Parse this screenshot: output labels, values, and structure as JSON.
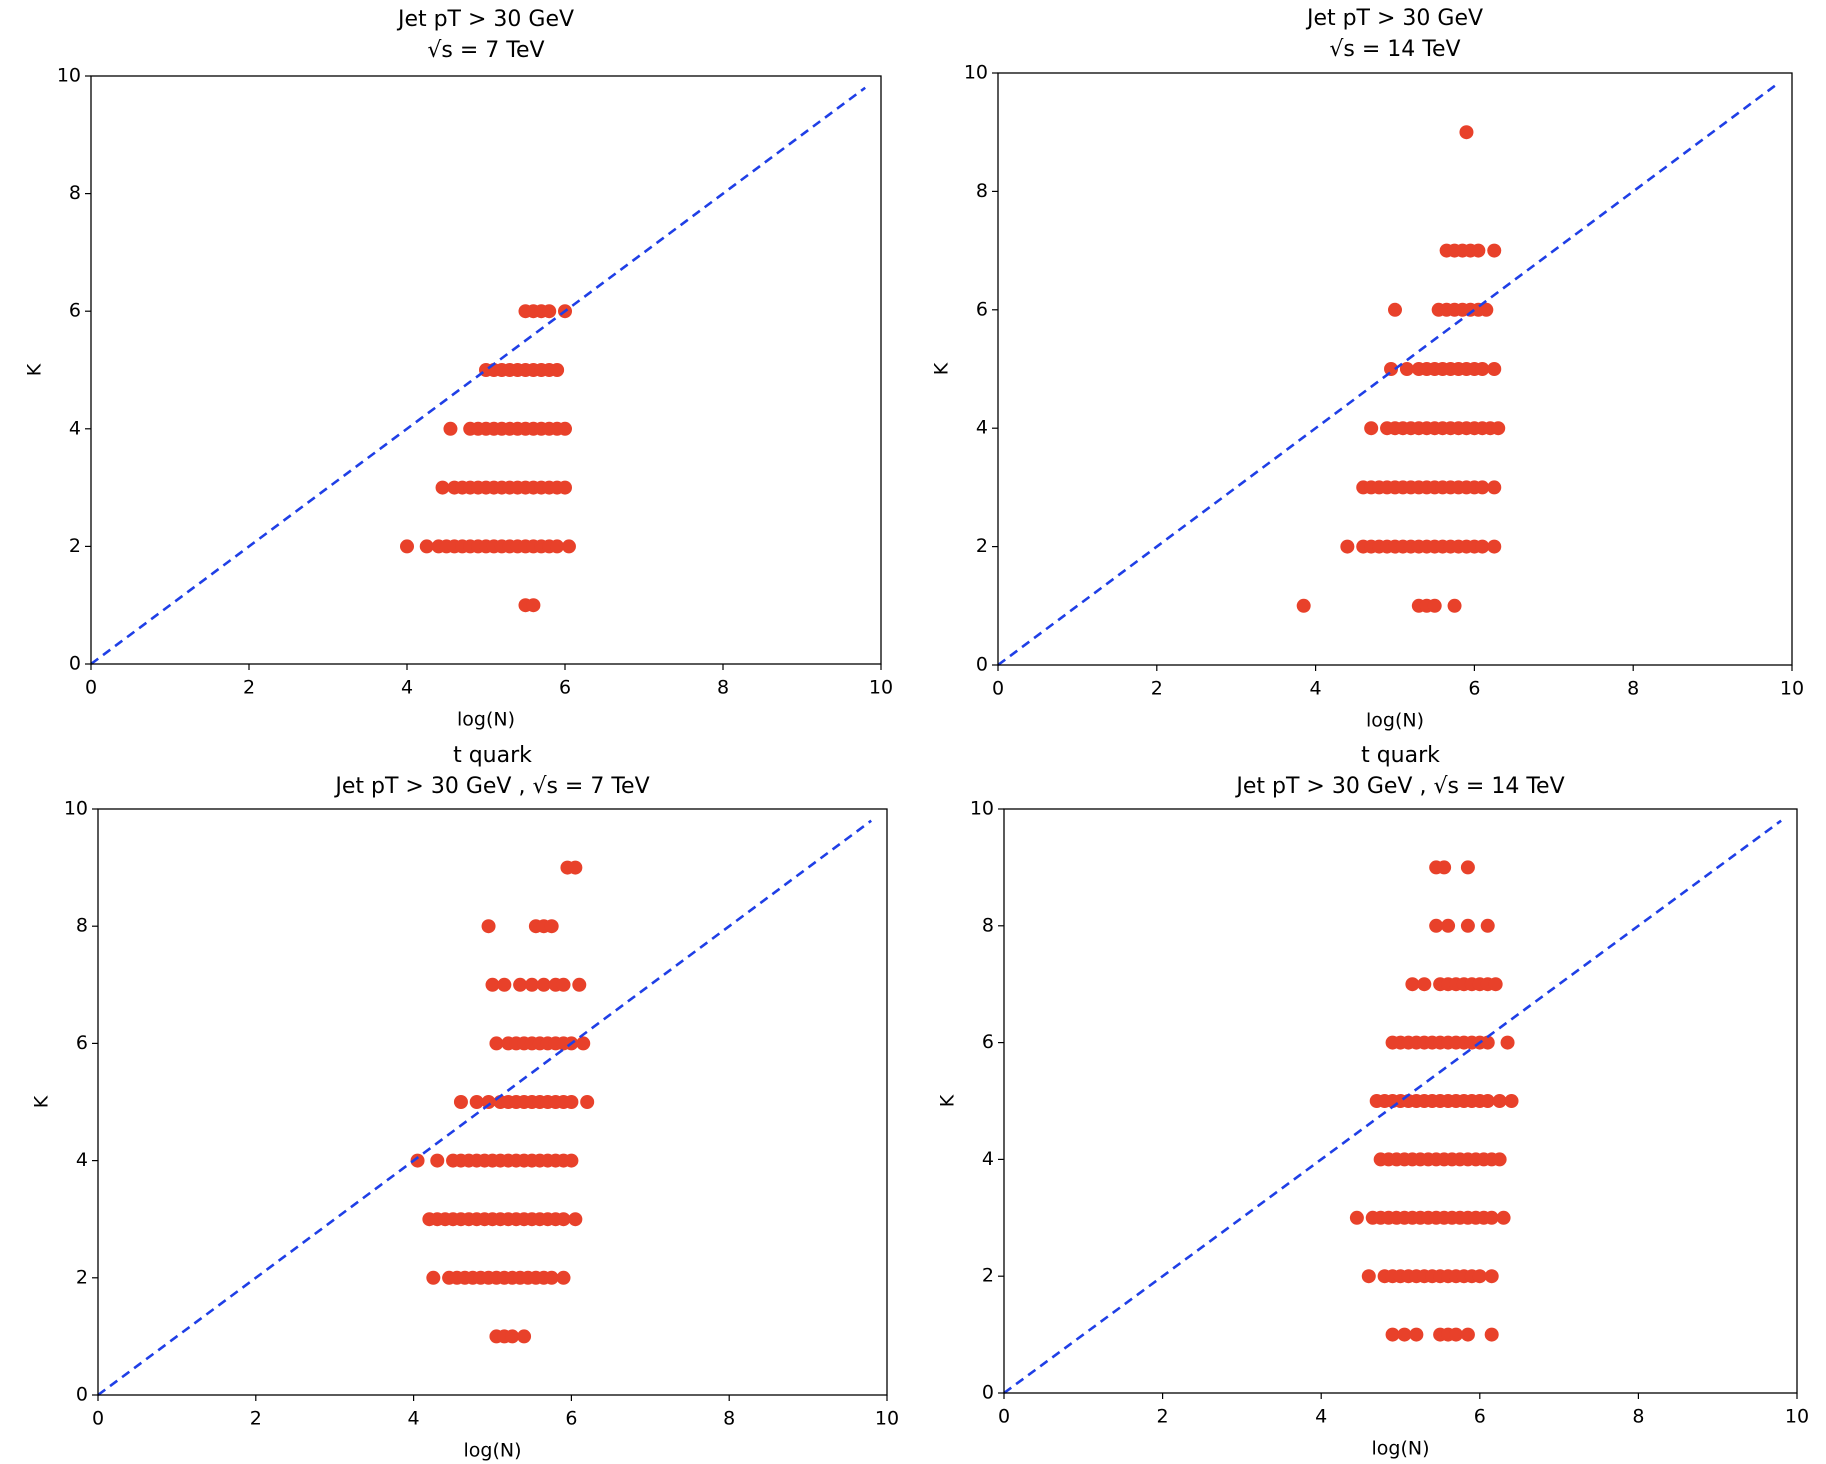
{
  "chart_data": [
    {
      "type": "scatter",
      "title": [
        "Jet pT > 30 GeV",
        "√s = 7 TeV"
      ],
      "xlabel": "log(N)",
      "ylabel": "K",
      "xlim": [
        0,
        10
      ],
      "ylim": [
        0,
        10
      ],
      "xticks": [
        0,
        2,
        4,
        6,
        8,
        10
      ],
      "yticks": [
        0,
        2,
        4,
        6,
        8,
        10
      ],
      "series": [
        {
          "type": "scatter",
          "color": "#e8412a",
          "x": [
            5.5,
            5.6,
            5.7,
            5.8,
            6.0,
            5.0,
            5.1,
            5.2,
            5.3,
            5.4,
            5.5,
            5.6,
            5.7,
            5.8,
            5.9,
            4.55,
            4.8,
            4.9,
            5.0,
            5.1,
            5.2,
            5.3,
            5.4,
            5.5,
            5.6,
            5.7,
            5.8,
            5.9,
            6.0,
            4.45,
            4.6,
            4.7,
            4.8,
            4.9,
            5.0,
            5.1,
            5.2,
            5.3,
            5.4,
            5.5,
            5.6,
            5.7,
            5.8,
            5.9,
            6.0,
            4.0,
            4.25,
            4.4,
            4.5,
            4.6,
            4.7,
            4.8,
            4.9,
            5.0,
            5.1,
            5.2,
            5.3,
            5.4,
            5.5,
            5.6,
            5.7,
            5.8,
            5.9,
            6.05,
            5.5,
            5.6
          ],
          "values": [
            6,
            6,
            6,
            6,
            6,
            5,
            5,
            5,
            5,
            5,
            5,
            5,
            5,
            5,
            5,
            4,
            4,
            4,
            4,
            4,
            4,
            4,
            4,
            4,
            4,
            4,
            4,
            4,
            4,
            3,
            3,
            3,
            3,
            3,
            3,
            3,
            3,
            3,
            3,
            3,
            3,
            3,
            3,
            3,
            3,
            2,
            2,
            2,
            2,
            2,
            2,
            2,
            2,
            2,
            2,
            2,
            2,
            2,
            2,
            2,
            2,
            2,
            2,
            2,
            1,
            1
          ]
        },
        {
          "type": "line",
          "color": "#1f3fe6",
          "dashed": true,
          "x": [
            0,
            9.8
          ],
          "values": [
            0,
            9.8
          ]
        }
      ]
    },
    {
      "type": "scatter",
      "title": [
        "Jet pT > 30 GeV",
        "√s = 14 TeV"
      ],
      "xlabel": "log(N)",
      "ylabel": "K",
      "xlim": [
        0,
        10
      ],
      "ylim": [
        0,
        10
      ],
      "xticks": [
        0,
        2,
        4,
        6,
        8,
        10
      ],
      "yticks": [
        0,
        2,
        4,
        6,
        8,
        10
      ],
      "series": [
        {
          "type": "scatter",
          "color": "#e8412a",
          "x": [
            5.9,
            5.65,
            5.75,
            5.85,
            5.95,
            6.05,
            6.25,
            5.0,
            5.55,
            5.65,
            5.75,
            5.85,
            5.95,
            6.05,
            6.15,
            4.95,
            5.15,
            5.3,
            5.4,
            5.5,
            5.6,
            5.7,
            5.8,
            5.9,
            6.0,
            6.1,
            6.25,
            4.7,
            4.9,
            5.0,
            5.1,
            5.2,
            5.3,
            5.4,
            5.5,
            5.6,
            5.7,
            5.8,
            5.9,
            6.0,
            6.1,
            6.2,
            6.3,
            4.6,
            4.7,
            4.8,
            4.9,
            5.0,
            5.1,
            5.2,
            5.3,
            5.4,
            5.5,
            5.6,
            5.7,
            5.8,
            5.9,
            6.0,
            6.1,
            6.25,
            4.4,
            4.6,
            4.7,
            4.8,
            4.9,
            5.0,
            5.1,
            5.2,
            5.3,
            5.4,
            5.5,
            5.6,
            5.7,
            5.8,
            5.9,
            6.0,
            6.1,
            6.25,
            3.85,
            5.3,
            5.4,
            5.5,
            5.75
          ],
          "values": [
            9,
            7,
            7,
            7,
            7,
            7,
            7,
            6,
            6,
            6,
            6,
            6,
            6,
            6,
            6,
            5,
            5,
            5,
            5,
            5,
            5,
            5,
            5,
            5,
            5,
            5,
            5,
            4,
            4,
            4,
            4,
            4,
            4,
            4,
            4,
            4,
            4,
            4,
            4,
            4,
            4,
            4,
            4,
            3,
            3,
            3,
            3,
            3,
            3,
            3,
            3,
            3,
            3,
            3,
            3,
            3,
            3,
            3,
            3,
            3,
            2,
            2,
            2,
            2,
            2,
            2,
            2,
            2,
            2,
            2,
            2,
            2,
            2,
            2,
            2,
            2,
            2,
            2,
            1,
            1,
            1,
            1,
            1
          ]
        },
        {
          "type": "line",
          "color": "#1f3fe6",
          "dashed": true,
          "x": [
            0,
            9.8
          ],
          "values": [
            0,
            9.8
          ]
        }
      ]
    },
    {
      "type": "scatter",
      "title": [
        "t quark",
        "Jet pT > 30 GeV , √s = 7 TeV"
      ],
      "xlabel": "log(N)",
      "ylabel": "K",
      "xlim": [
        0,
        10
      ],
      "ylim": [
        0,
        10
      ],
      "xticks": [
        0,
        2,
        4,
        6,
        8,
        10
      ],
      "yticks": [
        0,
        2,
        4,
        6,
        8,
        10
      ],
      "series": [
        {
          "type": "scatter",
          "color": "#e8412a",
          "x": [
            5.95,
            6.05,
            4.95,
            5.55,
            5.65,
            5.75,
            5.0,
            5.15,
            5.35,
            5.5,
            5.65,
            5.8,
            5.9,
            6.1,
            5.05,
            5.2,
            5.3,
            5.4,
            5.5,
            5.6,
            5.7,
            5.8,
            5.9,
            6.0,
            6.15,
            4.6,
            4.8,
            4.95,
            5.1,
            5.2,
            5.3,
            5.4,
            5.5,
            5.6,
            5.7,
            5.8,
            5.9,
            6.0,
            6.2,
            4.05,
            4.3,
            4.5,
            4.6,
            4.7,
            4.8,
            4.9,
            5.0,
            5.1,
            5.2,
            5.3,
            5.4,
            5.5,
            5.6,
            5.7,
            5.8,
            5.9,
            6.0,
            4.2,
            4.3,
            4.4,
            4.5,
            4.6,
            4.7,
            4.8,
            4.9,
            5.0,
            5.1,
            5.2,
            5.3,
            5.4,
            5.5,
            5.6,
            5.7,
            5.8,
            5.9,
            6.05,
            4.25,
            4.45,
            4.55,
            4.65,
            4.75,
            4.85,
            4.95,
            5.05,
            5.15,
            5.25,
            5.35,
            5.45,
            5.55,
            5.65,
            5.75,
            5.9,
            5.05,
            5.15,
            5.25,
            5.4
          ],
          "values": [
            9,
            9,
            8,
            8,
            8,
            8,
            7,
            7,
            7,
            7,
            7,
            7,
            7,
            7,
            6,
            6,
            6,
            6,
            6,
            6,
            6,
            6,
            6,
            6,
            6,
            5,
            5,
            5,
            5,
            5,
            5,
            5,
            5,
            5,
            5,
            5,
            5,
            5,
            5,
            4,
            4,
            4,
            4,
            4,
            4,
            4,
            4,
            4,
            4,
            4,
            4,
            4,
            4,
            4,
            4,
            4,
            4,
            3,
            3,
            3,
            3,
            3,
            3,
            3,
            3,
            3,
            3,
            3,
            3,
            3,
            3,
            3,
            3,
            3,
            3,
            3,
            2,
            2,
            2,
            2,
            2,
            2,
            2,
            2,
            2,
            2,
            2,
            2,
            2,
            2,
            2,
            2,
            1,
            1,
            1,
            1
          ]
        },
        {
          "type": "line",
          "color": "#1f3fe6",
          "dashed": true,
          "x": [
            0,
            9.8
          ],
          "values": [
            0,
            9.8
          ]
        }
      ]
    },
    {
      "type": "scatter",
      "title": [
        "t quark",
        "Jet pT > 30 GeV , √s = 14 TeV"
      ],
      "xlabel": "log(N)",
      "ylabel": "K",
      "xlim": [
        0,
        10
      ],
      "ylim": [
        0,
        10
      ],
      "xticks": [
        0,
        2,
        4,
        6,
        8,
        10
      ],
      "yticks": [
        0,
        2,
        4,
        6,
        8,
        10
      ],
      "series": [
        {
          "type": "scatter",
          "color": "#e8412a",
          "x": [
            5.45,
            5.55,
            5.85,
            5.45,
            5.6,
            5.85,
            6.1,
            5.15,
            5.3,
            5.5,
            5.6,
            5.7,
            5.8,
            5.9,
            6.0,
            6.1,
            6.2,
            4.9,
            5.0,
            5.1,
            5.2,
            5.3,
            5.4,
            5.5,
            5.6,
            5.7,
            5.8,
            5.9,
            6.0,
            6.1,
            6.35,
            4.7,
            4.8,
            4.9,
            5.0,
            5.1,
            5.2,
            5.3,
            5.4,
            5.5,
            5.6,
            5.7,
            5.8,
            5.9,
            6.0,
            6.1,
            6.25,
            6.4,
            4.75,
            4.85,
            4.95,
            5.05,
            5.15,
            5.25,
            5.35,
            5.45,
            5.55,
            5.65,
            5.75,
            5.85,
            5.95,
            6.05,
            6.15,
            6.25,
            4.45,
            4.65,
            4.75,
            4.85,
            4.95,
            5.05,
            5.15,
            5.25,
            5.35,
            5.45,
            5.55,
            5.65,
            5.75,
            5.85,
            5.95,
            6.05,
            6.15,
            6.3,
            4.6,
            4.8,
            4.9,
            5.0,
            5.1,
            5.2,
            5.3,
            5.4,
            5.5,
            5.6,
            5.7,
            5.8,
            5.9,
            6.0,
            6.15,
            4.9,
            5.05,
            5.2,
            5.5,
            5.6,
            5.7,
            5.85,
            6.15
          ],
          "values": [
            9,
            9,
            9,
            8,
            8,
            8,
            8,
            7,
            7,
            7,
            7,
            7,
            7,
            7,
            7,
            7,
            7,
            6,
            6,
            6,
            6,
            6,
            6,
            6,
            6,
            6,
            6,
            6,
            6,
            6,
            6,
            5,
            5,
            5,
            5,
            5,
            5,
            5,
            5,
            5,
            5,
            5,
            5,
            5,
            5,
            5,
            5,
            5,
            4,
            4,
            4,
            4,
            4,
            4,
            4,
            4,
            4,
            4,
            4,
            4,
            4,
            4,
            4,
            4,
            3,
            3,
            3,
            3,
            3,
            3,
            3,
            3,
            3,
            3,
            3,
            3,
            3,
            3,
            3,
            3,
            3,
            3,
            2,
            2,
            2,
            2,
            2,
            2,
            2,
            2,
            2,
            2,
            2,
            2,
            2,
            2,
            2,
            1,
            1,
            1,
            1,
            1,
            1,
            1,
            1
          ]
        },
        {
          "type": "line",
          "color": "#1f3fe6",
          "dashed": true,
          "x": [
            0,
            9.8
          ],
          "values": [
            0,
            9.8
          ]
        }
      ]
    }
  ]
}
